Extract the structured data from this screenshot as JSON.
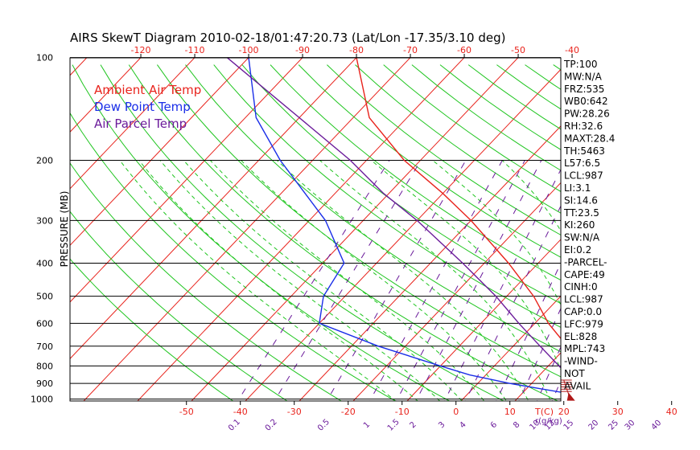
{
  "chart_data": {
    "type": "line",
    "title": "AIRS SkewT Diagram 2010-02-18/01:47:20.73 (Lat/Lon -17.35/3.10 deg)",
    "ylabel": "PRESSURE (MB)",
    "xlabel_bottom_unit": "T(C)",
    "mixing_ratio_unit": "r(g/kg)",
    "pressure_ticks": [
      100,
      200,
      300,
      400,
      500,
      600,
      700,
      800,
      900,
      1000
    ],
    "top_temperature_ticks": [
      -120,
      -110,
      -100,
      -90,
      -80,
      -70,
      -60,
      -50,
      -40
    ],
    "bottom_temperature_ticks": [
      -50,
      -40,
      -30,
      -20,
      -10,
      0,
      10,
      20,
      30,
      40
    ],
    "mixing_ratio_labels": [
      "0.1",
      "0.2",
      "0.5",
      "1",
      "1.5",
      "2",
      "3",
      "4",
      "6",
      "8",
      "10",
      "12",
      "15",
      "20",
      "25",
      "30",
      "40"
    ],
    "legend": [
      {
        "label": "Ambient Air Temp",
        "color": "#e8231c"
      },
      {
        "label": "Dew Point Temp",
        "color": "#1a2ee8"
      },
      {
        "label": "Air Parcel Temp",
        "color": "#6a1a9a"
      }
    ],
    "series": [
      {
        "name": "Ambient Air Temp",
        "color": "#e8231c",
        "points": [
          [
            1000,
            22
          ],
          [
            950,
            17
          ],
          [
            900,
            16
          ],
          [
            800,
            14
          ],
          [
            700,
            10
          ],
          [
            600,
            2.5
          ],
          [
            500,
            -5
          ],
          [
            400,
            -15.5
          ],
          [
            300,
            -30
          ],
          [
            250,
            -40
          ],
          [
            200,
            -53
          ],
          [
            150,
            -67
          ],
          [
            100,
            -80
          ]
        ]
      },
      {
        "name": "Dew Point Temp",
        "color": "#1a2ee8",
        "points": [
          [
            1000,
            19
          ],
          [
            960,
            18
          ],
          [
            930,
            12
          ],
          [
            900,
            6
          ],
          [
            850,
            -3
          ],
          [
            800,
            -10
          ],
          [
            700,
            -25
          ],
          [
            600,
            -40
          ],
          [
            500,
            -44
          ],
          [
            400,
            -46
          ],
          [
            300,
            -57
          ],
          [
            200,
            -76
          ],
          [
            150,
            -88
          ],
          [
            100,
            -100
          ]
        ]
      },
      {
        "name": "Air Parcel Temp",
        "color": "#6a1a9a",
        "points": [
          [
            1000,
            22
          ],
          [
            990,
            21.5
          ],
          [
            900,
            18
          ],
          [
            800,
            12
          ],
          [
            700,
            5
          ],
          [
            600,
            -3
          ],
          [
            500,
            -12
          ],
          [
            400,
            -24
          ],
          [
            300,
            -40
          ],
          [
            250,
            -51
          ],
          [
            200,
            -63
          ],
          [
            150,
            -80
          ],
          [
            100,
            -104
          ]
        ]
      }
    ],
    "wind": {
      "color": "#b01818",
      "surface_pressure": 1000,
      "barbs_pressure": [
        880,
        950
      ]
    },
    "stats": [
      "TP:100",
      "MW:N/A",
      "FRZ:535",
      "WB0:642",
      "PW:28.26",
      "RH:32.6",
      "MAXT:28.4",
      "TH:5463",
      "L57:6.5",
      "LCL:987",
      "LI:3.1",
      "SI:14.6",
      "TT:23.5",
      "KI:260",
      "SW:N/A",
      "EI:0.2",
      "-PARCEL-",
      "CAPE:49",
      "CINH:0",
      "LCL:987",
      "CAP:0.0",
      "LFC:979",
      "EL:828",
      "MPL:743",
      "-WIND-",
      " NOT",
      " AVAIL"
    ],
    "colors": {
      "isotherm": "#e8231c",
      "dry_adiabat": "#1fc51f",
      "moist_adiabat": "#1fc51f",
      "mixing_ratio": "#6a1a9a",
      "isobar": "#000000",
      "top_tick_labels": "#e8231c",
      "bottom_tick_labels": "#e8231c"
    }
  }
}
